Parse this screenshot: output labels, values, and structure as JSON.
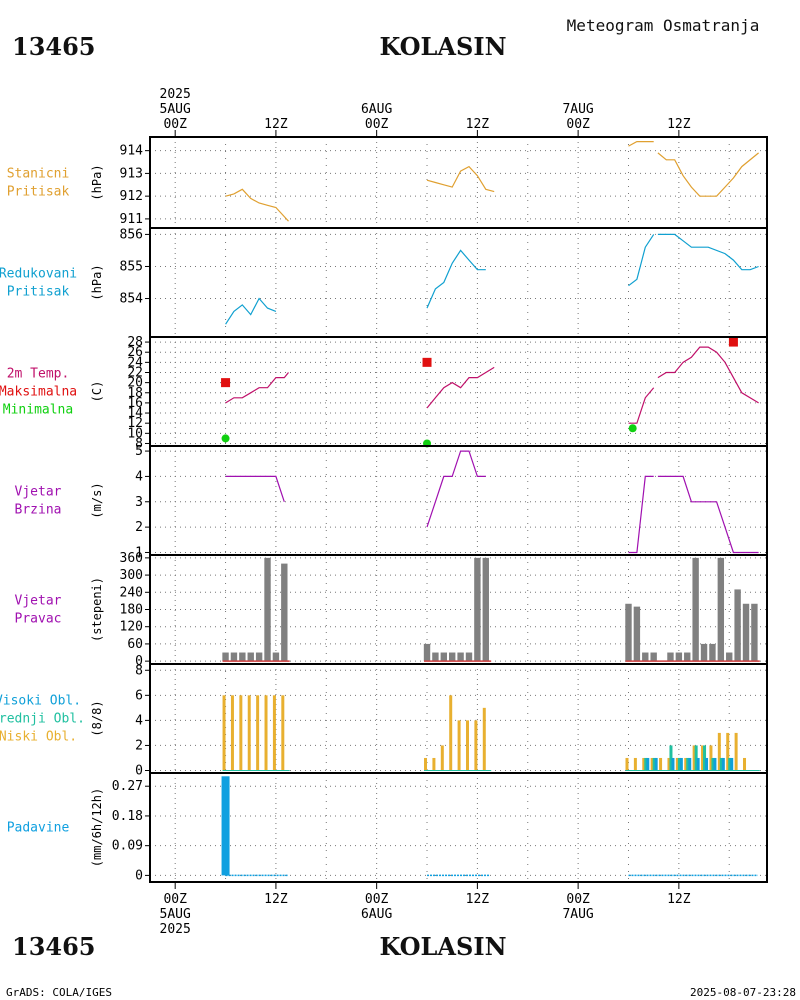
{
  "station_id": "13465",
  "station_name": "KOLASIN",
  "header_title": "Meteogram Osmatranja",
  "footer_left": "GrADS: COLA/IGES",
  "footer_right": "2025-08-07-23:28",
  "colors": {
    "pressure": "#e0a030",
    "reduced": "#10a0d0",
    "temp": "#c0106a",
    "tmax": "#e01010",
    "tmin": "#10d010",
    "wind": "#a010b0",
    "bars": "#808080",
    "baseline": "#d04040",
    "cloud_low": "#e8b030",
    "cloud_mid": "#20c0a0",
    "cloud_high": "#10a0d8",
    "precip": "#10a0e0",
    "grid": "#777777"
  },
  "time_axis": {
    "top_ticks": [
      {
        "t": 0,
        "lines": [
          "2025",
          "5AUG",
          "00Z"
        ]
      },
      {
        "t": 12,
        "lines": [
          "12Z"
        ]
      },
      {
        "t": 24,
        "lines": [
          "6AUG",
          "00Z"
        ]
      },
      {
        "t": 36,
        "lines": [
          "12Z"
        ]
      },
      {
        "t": 48,
        "lines": [
          "7AUG",
          "00Z"
        ]
      },
      {
        "t": 60,
        "lines": [
          "12Z"
        ]
      }
    ],
    "bottom_ticks": [
      {
        "t": 0,
        "lines": [
          "00Z",
          "5AUG",
          "2025"
        ]
      },
      {
        "t": 12,
        "lines": [
          "12Z"
        ]
      },
      {
        "t": 24,
        "lines": [
          "00Z",
          "6AUG"
        ]
      },
      {
        "t": 36,
        "lines": [
          "12Z"
        ]
      },
      {
        "t": 48,
        "lines": [
          "00Z",
          "7AUG"
        ]
      },
      {
        "t": 60,
        "lines": [
          "12Z"
        ]
      }
    ],
    "range_hours": [
      -3,
      70.5
    ]
  },
  "chart_data": [
    {
      "type": "line",
      "title_lines": [
        "Stanicni",
        "Pritisak"
      ],
      "ylabel": "(hPa)",
      "ylim": [
        910.6,
        914.6
      ],
      "yticks": [
        911,
        912,
        913,
        914
      ],
      "series": [
        {
          "name": "Stanicni Pritisak",
          "points": [
            [
              6,
              912.0
            ],
            [
              7,
              912.1
            ],
            [
              8,
              912.3
            ],
            [
              9,
              911.9
            ],
            [
              10,
              911.7
            ],
            [
              11,
              911.6
            ],
            [
              12,
              911.5
            ],
            [
              13,
              911.1
            ],
            [
              13.5,
              910.9
            ]
          ],
          "segments": [
            [
              [
                30,
                912.7
              ],
              [
                31,
                912.6
              ],
              [
                32,
                912.5
              ],
              [
                33,
                912.4
              ],
              [
                34,
                913.1
              ],
              [
                35,
                913.3
              ],
              [
                36,
                912.9
              ],
              [
                37,
                912.3
              ],
              [
                38,
                912.2
              ]
            ],
            [
              [
                54,
                914.2
              ],
              [
                55,
                914.4
              ],
              [
                57,
                914.4
              ]
            ],
            [
              [
                57.5,
                913.9
              ],
              [
                58.5,
                913.6
              ],
              [
                59.5,
                913.6
              ],
              [
                60.5,
                912.9
              ],
              [
                61.5,
                912.4
              ],
              [
                62.5,
                912.0
              ],
              [
                63.5,
                912.0
              ],
              [
                64.5,
                912.0
              ],
              [
                65.5,
                912.4
              ],
              [
                66.5,
                912.8
              ],
              [
                67.5,
                913.3
              ],
              [
                69.5,
                913.9
              ]
            ]
          ]
        }
      ]
    },
    {
      "type": "line",
      "title_lines": [
        "Redukovani",
        "Pritisak"
      ],
      "ylabel": "(hPa)",
      "ylim": [
        852.8,
        856.2
      ],
      "yticks": [
        854,
        855,
        856
      ],
      "series": [
        {
          "name": "Redukovani Pritisak",
          "segments": [
            [
              [
                6,
                853.2
              ],
              [
                7,
                853.6
              ],
              [
                8,
                853.8
              ],
              [
                9,
                853.5
              ],
              [
                10,
                854.0
              ],
              [
                11,
                853.7
              ],
              [
                12,
                853.6
              ]
            ],
            [
              [
                30,
                853.7
              ],
              [
                31,
                854.3
              ],
              [
                32,
                854.5
              ],
              [
                33,
                855.1
              ],
              [
                34,
                855.5
              ],
              [
                35,
                855.2
              ],
              [
                36,
                854.9
              ],
              [
                37,
                854.9
              ]
            ],
            [
              [
                54,
                854.4
              ],
              [
                55,
                854.6
              ],
              [
                56,
                855.6
              ],
              [
                57,
                856.0
              ]
            ],
            [
              [
                57.5,
                856.0
              ],
              [
                59.5,
                856.0
              ],
              [
                60.5,
                855.8
              ],
              [
                61.5,
                855.6
              ],
              [
                63.5,
                855.6
              ],
              [
                65.5,
                855.4
              ],
              [
                66.5,
                855.2
              ],
              [
                67.5,
                854.9
              ],
              [
                68.5,
                854.9
              ],
              [
                69.5,
                855.0
              ]
            ]
          ]
        }
      ]
    },
    {
      "type": "line",
      "title_lines": [
        "2m Temp.",
        "Maksimalna",
        "Minimalna"
      ],
      "ylabel": "(C)",
      "ylim": [
        7.5,
        29
      ],
      "yticks": [
        8,
        10,
        12,
        14,
        16,
        18,
        20,
        22,
        24,
        26,
        28
      ],
      "series": [
        {
          "name": "2m Temp.",
          "segments": [
            [
              [
                6,
                16
              ],
              [
                7,
                17
              ],
              [
                8,
                17
              ],
              [
                9,
                18
              ],
              [
                10,
                19
              ],
              [
                11,
                19
              ],
              [
                12,
                21
              ],
              [
                13,
                21
              ],
              [
                13.5,
                22
              ]
            ],
            [
              [
                30,
                15
              ],
              [
                31,
                17
              ],
              [
                32,
                19
              ],
              [
                33,
                20
              ],
              [
                34,
                19
              ],
              [
                35,
                21
              ],
              [
                36,
                21
              ],
              [
                37,
                22
              ],
              [
                38,
                23
              ]
            ],
            [
              [
                54,
                12
              ],
              [
                55,
                12
              ],
              [
                56,
                17
              ],
              [
                57,
                19
              ]
            ],
            [
              [
                57.5,
                21
              ],
              [
                58.5,
                22
              ],
              [
                59.5,
                22
              ],
              [
                60.5,
                24
              ],
              [
                61.5,
                25
              ],
              [
                62.5,
                27
              ],
              [
                63.5,
                27
              ],
              [
                64.5,
                26
              ],
              [
                65.5,
                24
              ],
              [
                66.5,
                21
              ],
              [
                67.5,
                18
              ],
              [
                69.5,
                16
              ]
            ]
          ]
        }
      ],
      "markers": [
        {
          "name": "Maksimalna",
          "points": [
            [
              6,
              20
            ],
            [
              30,
              24
            ],
            [
              66.5,
              28
            ]
          ]
        },
        {
          "name": "Minimalna",
          "points": [
            [
              6,
              9
            ],
            [
              30,
              8
            ],
            [
              54.5,
              11
            ]
          ]
        }
      ]
    },
    {
      "type": "line",
      "title_lines": [
        "Vjetar",
        "Brzina"
      ],
      "ylabel": "(m/s)",
      "ylim": [
        0.9,
        5.2
      ],
      "yticks": [
        1,
        2,
        3,
        4,
        5
      ],
      "series": [
        {
          "name": "Vjetar Brzina",
          "segments": [
            [
              [
                6,
                4
              ],
              [
                12,
                4
              ],
              [
                13,
                3
              ]
            ],
            [
              [
                30,
                2
              ],
              [
                31,
                3
              ],
              [
                32,
                4
              ],
              [
                33,
                4
              ],
              [
                34,
                5
              ],
              [
                35,
                5
              ],
              [
                36,
                4
              ],
              [
                37,
                4
              ]
            ],
            [
              [
                54,
                1
              ],
              [
                55,
                1
              ],
              [
                56,
                4
              ],
              [
                57,
                4
              ]
            ],
            [
              [
                57.5,
                4
              ],
              [
                60.5,
                4
              ],
              [
                61.5,
                3
              ],
              [
                64.5,
                3
              ],
              [
                65.5,
                2
              ],
              [
                66.5,
                1
              ],
              [
                69.5,
                1
              ]
            ]
          ]
        }
      ]
    },
    {
      "type": "bar",
      "title_lines": [
        "Vjetar",
        "Pravac"
      ],
      "ylabel": "(stepeni)",
      "ylim": [
        -10,
        370
      ],
      "yticks": [
        0,
        60,
        120,
        180,
        240,
        300,
        360
      ],
      "hours": [
        6,
        7,
        8,
        9,
        10,
        11,
        12,
        13,
        30,
        31,
        32,
        33,
        34,
        35,
        36,
        37,
        54,
        55,
        56,
        57,
        59,
        60,
        61,
        62,
        63,
        64,
        65,
        66,
        67,
        68,
        69
      ],
      "values": [
        30,
        30,
        30,
        30,
        30,
        360,
        30,
        340,
        60,
        30,
        30,
        30,
        30,
        30,
        360,
        360,
        200,
        190,
        30,
        30,
        30,
        30,
        30,
        360,
        60,
        60,
        360,
        30,
        250,
        200,
        200
      ]
    },
    {
      "type": "bar",
      "title_lines": [
        "Visoki Obl.",
        "Srednji Obl.",
        "Niski Obl."
      ],
      "ylabel": "(8/8)",
      "ylim": [
        -0.2,
        8.5
      ],
      "yticks": [
        0,
        2,
        4,
        6,
        8
      ],
      "hours": [
        6,
        7,
        8,
        9,
        10,
        11,
        12,
        13,
        30,
        31,
        32,
        33,
        34,
        35,
        36,
        37,
        54,
        55,
        56,
        57,
        58,
        59,
        60,
        61,
        62,
        63,
        64,
        65,
        66,
        67,
        68,
        69
      ],
      "series": [
        {
          "name": "Niski Obl.",
          "values": [
            6,
            6,
            6,
            6,
            6,
            6,
            6,
            6,
            1,
            1,
            2,
            6,
            4,
            4,
            4,
            5,
            1,
            1,
            1,
            1,
            1,
            1,
            1,
            1,
            2,
            2,
            2,
            3,
            3,
            3,
            1,
            0
          ]
        },
        {
          "name": "Srednji Obl.",
          "values": [
            0,
            0,
            0,
            0,
            0,
            0,
            0,
            0,
            0,
            0,
            0,
            0,
            0,
            0,
            0,
            0,
            0,
            0,
            1,
            1,
            0,
            2,
            1,
            1,
            2,
            2,
            1,
            1,
            1,
            0,
            0,
            0
          ]
        },
        {
          "name": "Visoki Obl.",
          "values": [
            0,
            0,
            0,
            0,
            0,
            0,
            0,
            0,
            0,
            0,
            0,
            0,
            0,
            0,
            0,
            0,
            0,
            0,
            1,
            1,
            0,
            1,
            1,
            1,
            1,
            1,
            1,
            1,
            1,
            0,
            0,
            0
          ]
        }
      ]
    },
    {
      "type": "bar",
      "title_lines": [
        "Padavine"
      ],
      "ylabel": "(mm/6h/12h)",
      "ylim": [
        -0.02,
        0.31
      ],
      "yticks": [
        0,
        0.09,
        0.18,
        0.27
      ],
      "ytick_labels": [
        "0",
        "0.09",
        "0.18",
        "0.27"
      ],
      "hours": [
        6
      ],
      "values": [
        0.3
      ],
      "trace_ranges": [
        [
          6,
          14
        ],
        [
          30,
          38
        ],
        [
          54,
          70
        ]
      ]
    }
  ]
}
